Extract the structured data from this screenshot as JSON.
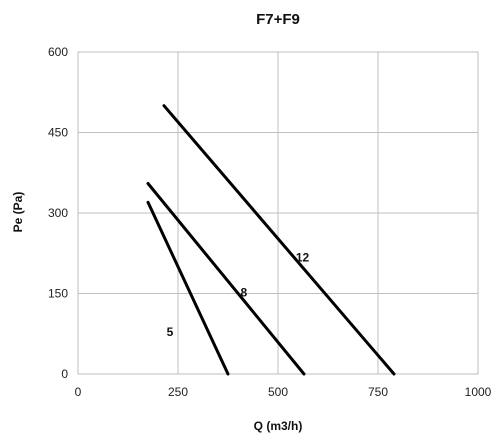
{
  "chart_data": {
    "type": "line",
    "title": "F7+F9",
    "xlabel": "Q (m3/h)",
    "ylabel": "Pe (Pa)",
    "xlim": [
      0,
      1000
    ],
    "ylim": [
      0,
      600
    ],
    "xticks": [
      0,
      250,
      500,
      750,
      1000
    ],
    "yticks": [
      0,
      150,
      300,
      450,
      600
    ],
    "grid": true,
    "line_color": "#000000",
    "grid_color": "#bfbfbf",
    "series": [
      {
        "name": "5",
        "x": [
          175,
          375
        ],
        "y": [
          320,
          0
        ]
      },
      {
        "name": "8",
        "x": [
          175,
          565
        ],
        "y": [
          355,
          0
        ]
      },
      {
        "name": "12",
        "x": [
          215,
          790
        ],
        "y": [
          500,
          0
        ]
      }
    ]
  }
}
